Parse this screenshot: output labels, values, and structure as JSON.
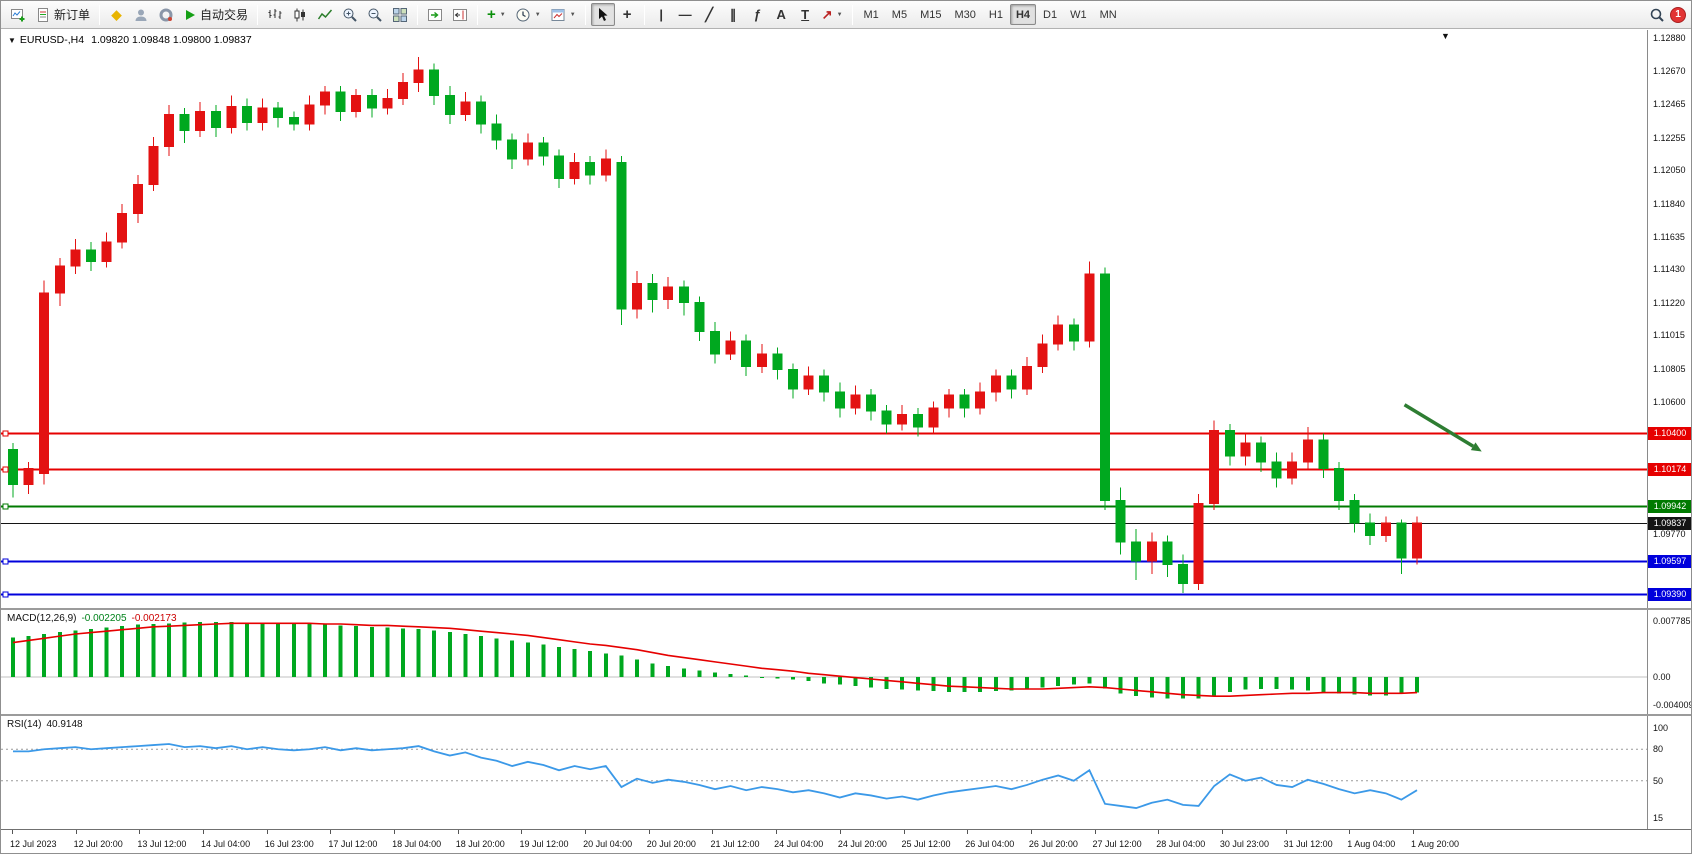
{
  "toolbar": {
    "new_order_label": "新订单",
    "autotrading_label": "自动交易",
    "timeframes": [
      "M1",
      "M5",
      "M15",
      "M30",
      "H1",
      "H4",
      "D1",
      "W1",
      "MN"
    ],
    "active_timeframe": "H4",
    "notification_badge": "1"
  },
  "icons": {
    "dropdown": "▼",
    "vline_tool": "|",
    "hline_tool": "—",
    "trendline_tool": "╱",
    "channel_tool": "∥",
    "fibonacci_tool": "ƒ",
    "text_tool": "A",
    "label_tool": "T",
    "arrow_tool": "↗",
    "crosshair_tool": "+",
    "indicator_add": "+",
    "metaquotes": "◆"
  },
  "chart": {
    "symbol_period": "EURUSD-,H4",
    "ohlc": "1.09820 1.09848 1.09800 1.09837"
  },
  "indicators": {
    "macd": {
      "name": "MACD(12,26,9)",
      "value_main": "-0.002205",
      "value_signal": "-0.002173"
    },
    "rsi": {
      "name": "RSI(14)",
      "value": "40.9148"
    }
  },
  "chart_data": [
    {
      "type": "candlestick",
      "symbol": "EURUSD-",
      "timeframe": "H4",
      "bull_color": "#e31212",
      "bear_color": "#00a81f",
      "candles": [
        [
          1.103,
          1.1034,
          1.1,
          1.1008
        ],
        [
          1.1008,
          1.1022,
          1.1002,
          1.1018
        ],
        [
          1.1015,
          1.1136,
          1.1008,
          1.1128
        ],
        [
          1.1128,
          1.115,
          1.112,
          1.1145
        ],
        [
          1.1145,
          1.1162,
          1.114,
          1.1155
        ],
        [
          1.1155,
          1.116,
          1.1142,
          1.1148
        ],
        [
          1.1148,
          1.1166,
          1.1144,
          1.116
        ],
        [
          1.116,
          1.1184,
          1.1156,
          1.1178
        ],
        [
          1.1178,
          1.1202,
          1.1172,
          1.1196
        ],
        [
          1.1196,
          1.1226,
          1.1192,
          1.122
        ],
        [
          1.122,
          1.1246,
          1.1214,
          1.124
        ],
        [
          1.124,
          1.1244,
          1.1222,
          1.123
        ],
        [
          1.123,
          1.1248,
          1.1226,
          1.1242
        ],
        [
          1.1242,
          1.1246,
          1.1226,
          1.1232
        ],
        [
          1.1232,
          1.1252,
          1.1228,
          1.1245
        ],
        [
          1.1245,
          1.125,
          1.123,
          1.1235
        ],
        [
          1.1235,
          1.125,
          1.123,
          1.1244
        ],
        [
          1.1244,
          1.1248,
          1.1232,
          1.1238
        ],
        [
          1.1238,
          1.1242,
          1.123,
          1.1234
        ],
        [
          1.1234,
          1.1252,
          1.123,
          1.1246
        ],
        [
          1.1246,
          1.1258,
          1.124,
          1.1254
        ],
        [
          1.1254,
          1.1258,
          1.1236,
          1.1242
        ],
        [
          1.1242,
          1.1256,
          1.1238,
          1.1252
        ],
        [
          1.1252,
          1.1256,
          1.1238,
          1.1244
        ],
        [
          1.1244,
          1.1256,
          1.124,
          1.125
        ],
        [
          1.125,
          1.1266,
          1.1246,
          1.126
        ],
        [
          1.126,
          1.1276,
          1.1254,
          1.1268
        ],
        [
          1.1268,
          1.1272,
          1.1246,
          1.1252
        ],
        [
          1.1252,
          1.1258,
          1.1234,
          1.124
        ],
        [
          1.124,
          1.1254,
          1.1236,
          1.1248
        ],
        [
          1.1248,
          1.1252,
          1.1228,
          1.1234
        ],
        [
          1.1234,
          1.124,
          1.1218,
          1.1224
        ],
        [
          1.1224,
          1.1228,
          1.1206,
          1.1212
        ],
        [
          1.1212,
          1.1228,
          1.1208,
          1.1222
        ],
        [
          1.1222,
          1.1226,
          1.1208,
          1.1214
        ],
        [
          1.1214,
          1.1218,
          1.1194,
          1.12
        ],
        [
          1.12,
          1.1216,
          1.1196,
          1.121
        ],
        [
          1.121,
          1.1214,
          1.1196,
          1.1202
        ],
        [
          1.1202,
          1.1218,
          1.1198,
          1.1212
        ],
        [
          1.121,
          1.1214,
          1.1108,
          1.1118
        ],
        [
          1.1118,
          1.1142,
          1.1112,
          1.1134
        ],
        [
          1.1134,
          1.114,
          1.1116,
          1.1124
        ],
        [
          1.1124,
          1.1138,
          1.1118,
          1.1132
        ],
        [
          1.1132,
          1.1136,
          1.1114,
          1.1122
        ],
        [
          1.1122,
          1.1126,
          1.1098,
          1.1104
        ],
        [
          1.1104,
          1.111,
          1.1084,
          1.109
        ],
        [
          1.109,
          1.1104,
          1.1086,
          1.1098
        ],
        [
          1.1098,
          1.1102,
          1.1076,
          1.1082
        ],
        [
          1.1082,
          1.1096,
          1.1078,
          1.109
        ],
        [
          1.109,
          1.1094,
          1.1074,
          1.108
        ],
        [
          1.108,
          1.1084,
          1.1062,
          1.1068
        ],
        [
          1.1068,
          1.1082,
          1.1064,
          1.1076
        ],
        [
          1.1076,
          1.108,
          1.106,
          1.1066
        ],
        [
          1.1066,
          1.1072,
          1.105,
          1.1056
        ],
        [
          1.1056,
          1.107,
          1.1052,
          1.1064
        ],
        [
          1.1064,
          1.1068,
          1.1048,
          1.1054
        ],
        [
          1.1054,
          1.1058,
          1.104,
          1.1046
        ],
        [
          1.1046,
          1.1058,
          1.1042,
          1.1052
        ],
        [
          1.1052,
          1.1056,
          1.1038,
          1.1044
        ],
        [
          1.1044,
          1.106,
          1.104,
          1.1056
        ],
        [
          1.1056,
          1.1068,
          1.105,
          1.1064
        ],
        [
          1.1064,
          1.1068,
          1.105,
          1.1056
        ],
        [
          1.1056,
          1.1072,
          1.1052,
          1.1066
        ],
        [
          1.1066,
          1.108,
          1.106,
          1.1076
        ],
        [
          1.1076,
          1.108,
          1.1062,
          1.1068
        ],
        [
          1.1068,
          1.1088,
          1.1064,
          1.1082
        ],
        [
          1.1082,
          1.1102,
          1.1078,
          1.1096
        ],
        [
          1.1096,
          1.1114,
          1.1092,
          1.1108
        ],
        [
          1.1108,
          1.1112,
          1.1092,
          1.1098
        ],
        [
          1.1098,
          1.1148,
          1.1094,
          1.114
        ],
        [
          1.114,
          1.1144,
          1.0992,
          1.0998
        ],
        [
          1.0998,
          1.1006,
          1.0964,
          1.0972
        ],
        [
          1.0972,
          1.098,
          1.0948,
          1.096
        ],
        [
          1.096,
          1.0978,
          1.0952,
          1.0972
        ],
        [
          1.0972,
          1.0976,
          1.095,
          1.0958
        ],
        [
          1.0958,
          1.0964,
          1.094,
          1.0946
        ],
        [
          1.0946,
          1.1002,
          1.0942,
          1.0996
        ],
        [
          1.0996,
          1.1048,
          1.0992,
          1.1042
        ],
        [
          1.1042,
          1.1046,
          1.102,
          1.1026
        ],
        [
          1.1026,
          1.104,
          1.102,
          1.1034
        ],
        [
          1.1034,
          1.1038,
          1.1016,
          1.1022
        ],
        [
          1.1022,
          1.1028,
          1.1006,
          1.1012
        ],
        [
          1.1012,
          1.1028,
          1.1008,
          1.1022
        ],
        [
          1.1022,
          1.1044,
          1.1018,
          1.1036
        ],
        [
          1.1036,
          1.104,
          1.1012,
          1.1018
        ],
        [
          1.1018,
          1.1022,
          1.0992,
          1.0998
        ],
        [
          1.0998,
          1.1002,
          1.0978,
          1.0984
        ],
        [
          1.0984,
          1.099,
          1.097,
          1.0976
        ],
        [
          1.0976,
          1.0988,
          1.0972,
          1.0984
        ],
        [
          1.0984,
          1.0986,
          1.0952,
          1.0962
        ],
        [
          1.0962,
          1.0988,
          1.0958,
          1.0984
        ]
      ],
      "x_labels": [
        "12 Jul 2023",
        "12 Jul 20:00",
        "13 Jul 12:00",
        "14 Jul 04:00",
        "16 Jul 23:00",
        "17 Jul 12:00",
        "18 Jul 04:00",
        "18 Jul 20:00",
        "19 Jul 12:00",
        "20 Jul 04:00",
        "20 Jul 20:00",
        "21 Jul 12:00",
        "24 Jul 04:00",
        "24 Jul 20:00",
        "25 Jul 12:00",
        "26 Jul 04:00",
        "26 Jul 20:00",
        "27 Jul 12:00",
        "28 Jul 04:00",
        "30 Jul 23:00",
        "31 Jul 12:00",
        "1 Aug 04:00",
        "1 Aug 20:00"
      ],
      "price_axis_labels": [
        "1.12880",
        "1.12670",
        "1.12465",
        "1.12255",
        "1.12050",
        "1.11840",
        "1.11635",
        "1.11430",
        "1.11220",
        "1.11015",
        "1.10805",
        "1.10600",
        "1.09770"
      ],
      "levels": [
        {
          "price": 1.104,
          "label": "1.10400",
          "color": "#e60000",
          "width": 2,
          "handle": true
        },
        {
          "price": 1.10174,
          "label": "1.10174",
          "color": "#e60000",
          "width": 2,
          "handle": true
        },
        {
          "price": 1.09942,
          "label": "1.09942",
          "color": "#007a00",
          "width": 2,
          "handle": true
        },
        {
          "price": 1.09837,
          "label": "1.09837",
          "color": "#141414",
          "width": 1,
          "handle": false
        },
        {
          "price": 1.09597,
          "label": "1.09597",
          "color": "#0000dc",
          "width": 2,
          "handle": true
        },
        {
          "price": 1.0939,
          "label": "1.09390",
          "color": "#0000dc",
          "width": 2,
          "handle": true
        }
      ],
      "arrow_annotation": {
        "bar_from": 89.2,
        "price_from": 1.1058,
        "bar_to": 93.6,
        "price_to": 1.1032,
        "color": "#2e7d32"
      }
    },
    {
      "type": "macd",
      "label": "MACD(12,26,9)",
      "values_text": [
        "-0.002205",
        "-0.002173"
      ],
      "unit": 0.0001,
      "histogram_color": "#00a81f",
      "signal_color": "#e60000",
      "histogram": [
        55,
        57,
        60,
        63,
        65,
        67,
        69,
        71,
        73,
        74,
        75,
        76,
        77,
        77,
        77,
        76,
        76,
        75,
        74,
        74,
        73,
        72,
        71,
        70,
        69,
        68,
        67,
        65,
        63,
        60,
        57,
        54,
        51,
        48,
        45,
        42,
        39,
        36,
        33,
        30,
        24,
        19,
        15,
        12,
        9,
        6,
        4,
        2,
        0,
        -2,
        -4,
        -6,
        -9,
        -11,
        -13,
        -15,
        -17,
        -18,
        -19,
        -20,
        -21,
        -21,
        -21,
        -20,
        -19,
        -17,
        -15,
        -13,
        -11,
        -9,
        -16,
        -23,
        -27,
        -29,
        -30,
        -30,
        -30,
        -26,
        -21,
        -18,
        -17,
        -17,
        -18,
        -19,
        -21,
        -23,
        -25,
        -26,
        -26,
        -24,
        -22
      ],
      "signal": [
        48,
        51,
        54,
        57,
        60,
        62,
        64,
        66,
        68,
        70,
        71,
        72,
        73,
        74,
        75,
        75,
        75,
        75,
        75,
        75,
        74,
        74,
        73,
        72,
        72,
        71,
        70,
        69,
        68,
        66,
        64,
        62,
        60,
        58,
        55,
        52,
        49,
        46,
        44,
        41,
        38,
        34,
        30,
        27,
        24,
        21,
        18,
        15,
        12,
        10,
        8,
        5,
        3,
        1,
        -1,
        -3,
        -5,
        -7,
        -9,
        -11,
        -13,
        -14,
        -15,
        -16,
        -17,
        -17,
        -17,
        -16,
        -15,
        -14,
        -15,
        -17,
        -19,
        -21,
        -23,
        -25,
        -26,
        -27,
        -27,
        -26,
        -25,
        -24,
        -23,
        -23,
        -22,
        -22,
        -22,
        -23,
        -23,
        -23,
        -22
      ],
      "axis_labels": [
        {
          "v": 0.007785,
          "t": "0.007785"
        },
        {
          "v": 0,
          "t": "0.00"
        },
        {
          "v": -0.004009,
          "t": "-0.004009"
        }
      ]
    },
    {
      "type": "rsi",
      "label": "RSI(14)",
      "value_text": "40.9148",
      "period": 14,
      "line_color": "#3b99e8",
      "levels": [
        80,
        50
      ],
      "values": [
        78,
        78,
        80,
        81,
        82,
        80,
        81,
        82,
        83,
        84,
        85,
        82,
        83,
        81,
        83,
        80,
        82,
        80,
        79,
        80,
        82,
        79,
        81,
        79,
        80,
        81,
        83,
        78,
        74,
        77,
        72,
        69,
        64,
        68,
        65,
        60,
        64,
        61,
        64,
        44,
        52,
        48,
        51,
        49,
        46,
        42,
        45,
        41,
        44,
        42,
        39,
        41,
        38,
        34,
        38,
        36,
        33,
        35,
        32,
        36,
        39,
        41,
        43,
        45,
        42,
        46,
        51,
        55,
        50,
        60,
        28,
        26,
        24,
        29,
        32,
        27,
        26,
        45,
        56,
        50,
        53,
        46,
        44,
        51,
        47,
        42,
        38,
        41,
        38,
        32,
        41
      ],
      "axis_labels": [
        {
          "v": 100,
          "t": "100"
        },
        {
          "v": 80,
          "t": "80"
        },
        {
          "v": 50,
          "t": "50"
        },
        {
          "v": 15,
          "t": "15"
        }
      ]
    }
  ]
}
